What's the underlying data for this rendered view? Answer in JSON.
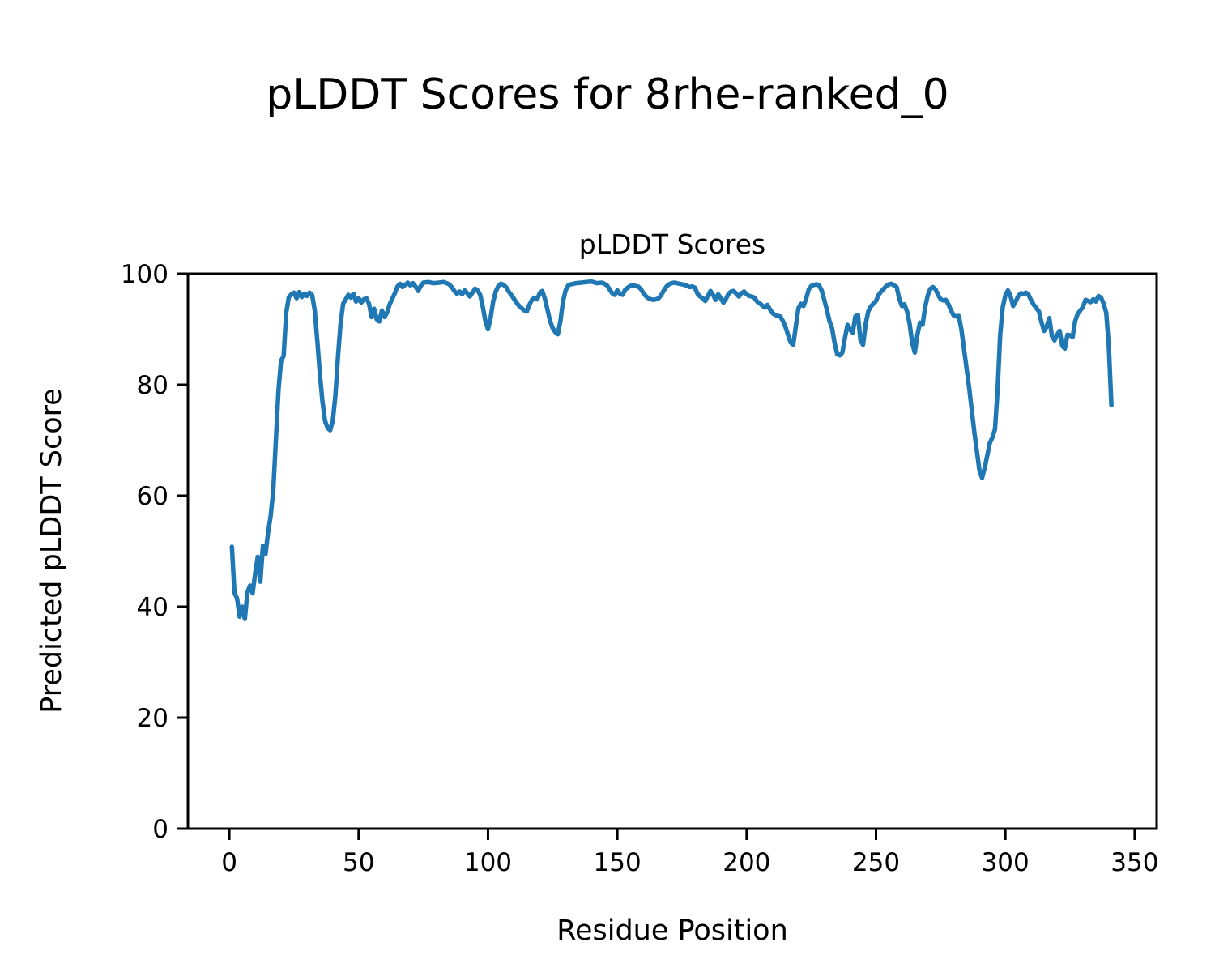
{
  "chart_data": {
    "type": "line",
    "suptitle": "pLDDT Scores for 8rhe-ranked_0",
    "title": "pLDDT Scores",
    "xlabel": "Residue Position",
    "ylabel": "Predicted pLDDT Score",
    "xlim": [
      -16,
      358.5
    ],
    "ylim": [
      0,
      100
    ],
    "xticks": [
      0,
      50,
      100,
      150,
      200,
      250,
      300,
      350
    ],
    "yticks": [
      0,
      20,
      40,
      60,
      80,
      100
    ],
    "grid": false,
    "legend": "none",
    "line_color": "#1f77b4",
    "series": [
      {
        "name": "pLDDT",
        "points": [
          [
            1,
            50.8
          ],
          [
            2,
            42.5
          ],
          [
            3,
            41.5
          ],
          [
            4,
            38.2
          ],
          [
            5,
            40.0
          ],
          [
            6,
            37.8
          ],
          [
            7,
            42.6
          ],
          [
            8,
            43.8
          ],
          [
            9,
            42.4
          ],
          [
            10,
            46.0
          ],
          [
            11,
            49.0
          ],
          [
            12,
            44.5
          ],
          [
            13,
            51.0
          ],
          [
            14,
            49.5
          ],
          [
            15,
            53.4
          ],
          [
            16,
            56.4
          ],
          [
            17,
            61.0
          ],
          [
            18,
            70.0
          ],
          [
            19,
            79.0
          ],
          [
            20,
            84.3
          ],
          [
            21,
            85.2
          ],
          [
            22,
            93.0
          ],
          [
            23,
            95.8
          ],
          [
            24,
            96.3
          ],
          [
            25,
            96.6
          ],
          [
            26,
            95.6
          ],
          [
            27,
            96.7
          ],
          [
            28,
            95.8
          ],
          [
            29,
            96.4
          ],
          [
            30,
            96.0
          ],
          [
            31,
            96.6
          ],
          [
            32,
            96.2
          ],
          [
            33,
            93.5
          ],
          [
            34,
            88.0
          ],
          [
            35,
            82.0
          ],
          [
            36,
            77.0
          ],
          [
            37,
            73.5
          ],
          [
            38,
            72.2
          ],
          [
            39,
            71.8
          ],
          [
            40,
            73.5
          ],
          [
            41,
            78.0
          ],
          [
            42,
            85.0
          ],
          [
            43,
            91.0
          ],
          [
            44,
            94.6
          ],
          [
            45,
            95.4
          ],
          [
            46,
            96.2
          ],
          [
            47,
            95.7
          ],
          [
            48,
            96.4
          ],
          [
            49,
            95.0
          ],
          [
            50,
            95.6
          ],
          [
            51,
            94.8
          ],
          [
            52,
            95.4
          ],
          [
            53,
            95.6
          ],
          [
            54,
            94.6
          ],
          [
            55,
            92.2
          ],
          [
            56,
            93.7
          ],
          [
            57,
            91.8
          ],
          [
            58,
            91.4
          ],
          [
            59,
            93.4
          ],
          [
            60,
            92.2
          ],
          [
            61,
            93.0
          ],
          [
            62,
            94.5
          ],
          [
            63,
            95.5
          ],
          [
            64,
            96.5
          ],
          [
            65,
            97.7
          ],
          [
            66,
            98.2
          ],
          [
            67,
            97.6
          ],
          [
            68,
            98.0
          ],
          [
            69,
            98.4
          ],
          [
            70,
            97.9
          ],
          [
            71,
            98.3
          ],
          [
            72,
            97.7
          ],
          [
            73,
            96.9
          ],
          [
            74,
            97.8
          ],
          [
            75,
            98.4
          ],
          [
            77,
            98.5
          ],
          [
            79,
            98.3
          ],
          [
            81,
            98.4
          ],
          [
            83,
            98.5
          ],
          [
            85,
            98.1
          ],
          [
            86,
            97.6
          ],
          [
            87,
            96.9
          ],
          [
            88,
            96.4
          ],
          [
            89,
            96.8
          ],
          [
            90,
            96.3
          ],
          [
            91,
            97.0
          ],
          [
            92,
            96.5
          ],
          [
            93,
            95.9
          ],
          [
            94,
            96.6
          ],
          [
            95,
            97.3
          ],
          [
            96,
            97.0
          ],
          [
            97,
            96.2
          ],
          [
            98,
            94.0
          ],
          [
            99,
            91.5
          ],
          [
            100,
            90.0
          ],
          [
            101,
            92.0
          ],
          [
            102,
            95.0
          ],
          [
            103,
            96.8
          ],
          [
            104,
            97.8
          ],
          [
            105,
            98.2
          ],
          [
            106,
            98.0
          ],
          [
            107,
            97.6
          ],
          [
            108,
            96.8
          ],
          [
            109,
            96.2
          ],
          [
            110,
            95.5
          ],
          [
            111,
            94.8
          ],
          [
            112,
            94.2
          ],
          [
            113,
            93.8
          ],
          [
            114,
            93.4
          ],
          [
            115,
            93.2
          ],
          [
            116,
            94.4
          ],
          [
            117,
            95.3
          ],
          [
            118,
            95.7
          ],
          [
            119,
            95.4
          ],
          [
            120,
            96.5
          ],
          [
            121,
            96.9
          ],
          [
            122,
            95.5
          ],
          [
            123,
            93.5
          ],
          [
            124,
            91.5
          ],
          [
            125,
            90.2
          ],
          [
            126,
            89.5
          ],
          [
            127,
            89.1
          ],
          [
            128,
            91.5
          ],
          [
            129,
            95.0
          ],
          [
            130,
            97.0
          ],
          [
            131,
            97.9
          ],
          [
            132,
            98.1
          ],
          [
            134,
            98.3
          ],
          [
            136,
            98.4
          ],
          [
            138,
            98.5
          ],
          [
            140,
            98.6
          ],
          [
            142,
            98.3
          ],
          [
            144,
            98.4
          ],
          [
            145,
            98.2
          ],
          [
            146,
            97.9
          ],
          [
            147,
            97.2
          ],
          [
            148,
            96.5
          ],
          [
            149,
            96.2
          ],
          [
            150,
            97.0
          ],
          [
            151,
            96.4
          ],
          [
            152,
            96.2
          ],
          [
            153,
            97.1
          ],
          [
            154,
            97.5
          ],
          [
            155,
            97.8
          ],
          [
            156,
            97.9
          ],
          [
            158,
            97.7
          ],
          [
            159,
            97.3
          ],
          [
            160,
            96.6
          ],
          [
            161,
            96.0
          ],
          [
            162,
            95.6
          ],
          [
            163,
            95.4
          ],
          [
            164,
            95.3
          ],
          [
            165,
            95.4
          ],
          [
            166,
            95.6
          ],
          [
            167,
            96.2
          ],
          [
            168,
            97.0
          ],
          [
            169,
            97.7
          ],
          [
            170,
            98.1
          ],
          [
            171,
            98.3
          ],
          [
            172,
            98.4
          ],
          [
            174,
            98.2
          ],
          [
            176,
            98.0
          ],
          [
            177,
            97.8
          ],
          [
            178,
            97.6
          ],
          [
            179,
            97.7
          ],
          [
            180,
            97.5
          ],
          [
            181,
            96.4
          ],
          [
            182,
            95.9
          ],
          [
            183,
            95.6
          ],
          [
            184,
            95.1
          ],
          [
            185,
            96.0
          ],
          [
            186,
            96.9
          ],
          [
            187,
            96.2
          ],
          [
            188,
            95.3
          ],
          [
            189,
            96.3
          ],
          [
            190,
            95.6
          ],
          [
            191,
            94.8
          ],
          [
            192,
            95.5
          ],
          [
            193,
            96.4
          ],
          [
            194,
            96.8
          ],
          [
            195,
            96.9
          ],
          [
            196,
            96.4
          ],
          [
            197,
            95.9
          ],
          [
            198,
            96.5
          ],
          [
            199,
            96.8
          ],
          [
            200,
            96.3
          ],
          [
            201,
            96.0
          ],
          [
            202,
            95.9
          ],
          [
            203,
            95.7
          ],
          [
            204,
            95.0
          ],
          [
            205,
            94.7
          ],
          [
            206,
            94.3
          ],
          [
            207,
            93.9
          ],
          [
            208,
            94.4
          ],
          [
            209,
            93.6
          ],
          [
            210,
            92.9
          ],
          [
            211,
            92.6
          ],
          [
            212,
            92.4
          ],
          [
            213,
            92.3
          ],
          [
            214,
            91.5
          ],
          [
            215,
            90.4
          ],
          [
            216,
            89.0
          ],
          [
            217,
            87.6
          ],
          [
            218,
            87.2
          ],
          [
            219,
            90.5
          ],
          [
            220,
            93.8
          ],
          [
            221,
            94.6
          ],
          [
            222,
            94.2
          ],
          [
            223,
            95.5
          ],
          [
            224,
            97.2
          ],
          [
            225,
            97.8
          ],
          [
            226,
            98.0
          ],
          [
            227,
            98.1
          ],
          [
            228,
            97.9
          ],
          [
            229,
            97.0
          ],
          [
            230,
            95.3
          ],
          [
            231,
            93.5
          ],
          [
            232,
            91.5
          ],
          [
            233,
            90.2
          ],
          [
            234,
            87.5
          ],
          [
            235,
            85.5
          ],
          [
            236,
            85.3
          ],
          [
            237,
            85.8
          ],
          [
            238,
            88.5
          ],
          [
            239,
            90.8
          ],
          [
            240,
            89.9
          ],
          [
            241,
            89.4
          ],
          [
            242,
            92.3
          ],
          [
            243,
            92.6
          ],
          [
            244,
            88.0
          ],
          [
            245,
            87.2
          ],
          [
            246,
            91.0
          ],
          [
            247,
            93.2
          ],
          [
            248,
            94.1
          ],
          [
            249,
            94.6
          ],
          [
            250,
            95.1
          ],
          [
            251,
            96.2
          ],
          [
            252,
            96.8
          ],
          [
            253,
            97.3
          ],
          [
            254,
            97.8
          ],
          [
            255,
            98.1
          ],
          [
            256,
            98.2
          ],
          [
            257,
            97.9
          ],
          [
            258,
            97.6
          ],
          [
            259,
            95.5
          ],
          [
            260,
            94.2
          ],
          [
            261,
            94.5
          ],
          [
            262,
            93.2
          ],
          [
            263,
            91.0
          ],
          [
            264,
            87.5
          ],
          [
            265,
            85.8
          ],
          [
            266,
            89.0
          ],
          [
            267,
            91.2
          ],
          [
            268,
            90.8
          ],
          [
            269,
            94.0
          ],
          [
            270,
            96.1
          ],
          [
            271,
            97.3
          ],
          [
            272,
            97.6
          ],
          [
            273,
            97.2
          ],
          [
            274,
            96.2
          ],
          [
            275,
            95.4
          ],
          [
            276,
            95.2
          ],
          [
            277,
            95.3
          ],
          [
            278,
            94.5
          ],
          [
            279,
            93.4
          ],
          [
            280,
            92.5
          ],
          [
            281,
            92.3
          ],
          [
            282,
            92.4
          ],
          [
            283,
            90.0
          ],
          [
            284,
            86.5
          ],
          [
            285,
            83.0
          ],
          [
            286,
            79.5
          ],
          [
            287,
            75.5
          ],
          [
            288,
            71.5
          ],
          [
            289,
            68.0
          ],
          [
            290,
            64.5
          ],
          [
            291,
            63.2
          ],
          [
            292,
            65.0
          ],
          [
            293,
            67.2
          ],
          [
            294,
            69.5
          ],
          [
            295,
            70.5
          ],
          [
            296,
            72.0
          ],
          [
            297,
            79.0
          ],
          [
            298,
            89.0
          ],
          [
            299,
            94.0
          ],
          [
            300,
            96.1
          ],
          [
            301,
            97.0
          ],
          [
            302,
            96.0
          ],
          [
            303,
            94.2
          ],
          [
            304,
            95.0
          ],
          [
            305,
            96.0
          ],
          [
            306,
            96.5
          ],
          [
            307,
            96.4
          ],
          [
            308,
            96.6
          ],
          [
            309,
            96.2
          ],
          [
            310,
            95.2
          ],
          [
            311,
            94.4
          ],
          [
            312,
            93.8
          ],
          [
            313,
            93.2
          ],
          [
            314,
            91.2
          ],
          [
            315,
            89.7
          ],
          [
            316,
            90.5
          ],
          [
            317,
            92.0
          ],
          [
            318,
            88.8
          ],
          [
            319,
            88.0
          ],
          [
            320,
            89.0
          ],
          [
            321,
            89.7
          ],
          [
            322,
            87.0
          ],
          [
            323,
            86.5
          ],
          [
            324,
            89.0
          ],
          [
            325,
            88.9
          ],
          [
            326,
            88.6
          ],
          [
            327,
            91.5
          ],
          [
            328,
            92.8
          ],
          [
            329,
            93.4
          ],
          [
            330,
            94.0
          ],
          [
            331,
            95.3
          ],
          [
            332,
            95.1
          ],
          [
            333,
            94.9
          ],
          [
            334,
            95.4
          ],
          [
            335,
            95.0
          ],
          [
            336,
            96.0
          ],
          [
            337,
            95.7
          ],
          [
            338,
            94.6
          ],
          [
            339,
            93.0
          ],
          [
            340,
            87.0
          ],
          [
            341,
            76.3
          ]
        ]
      }
    ]
  }
}
